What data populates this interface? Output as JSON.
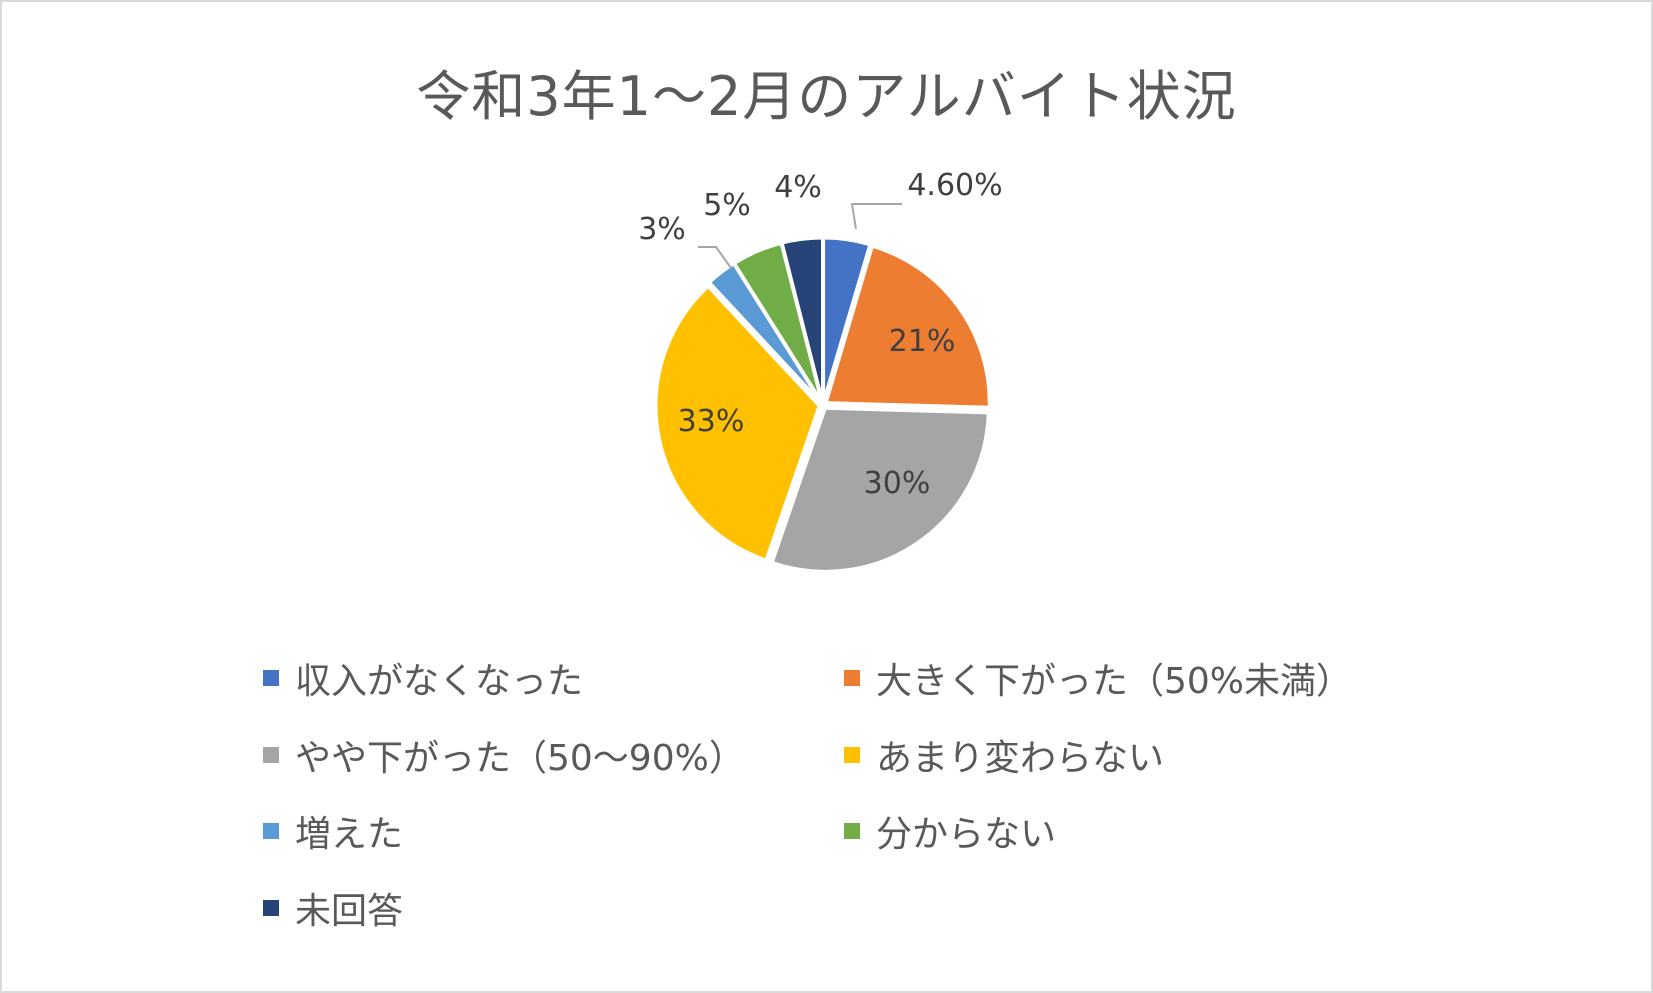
{
  "chart_data": {
    "type": "pie",
    "title": "令和3年1～2月のアルバイト状況",
    "slices": [
      {
        "label": "収入がなくなった",
        "value": 4.6,
        "data_label": "4.60%",
        "color": "#4472C4"
      },
      {
        "label": "大きく下がった（50%未満）",
        "value": 21,
        "data_label": "21%",
        "color": "#ED7D31"
      },
      {
        "label": "やや下がった（50～90%）",
        "value": 30,
        "data_label": "30%",
        "color": "#A5A5A5"
      },
      {
        "label": "あまり変わらない",
        "value": 33,
        "data_label": "33%",
        "color": "#FFC000"
      },
      {
        "label": "増えた",
        "value": 3,
        "data_label": "3%",
        "color": "#5B9BD5"
      },
      {
        "label": "分からない",
        "value": 5,
        "data_label": "5%",
        "color": "#70AD47"
      },
      {
        "label": "未回答",
        "value": 4,
        "data_label": "4%",
        "color": "#264478"
      }
    ],
    "legend_position": "bottom"
  }
}
